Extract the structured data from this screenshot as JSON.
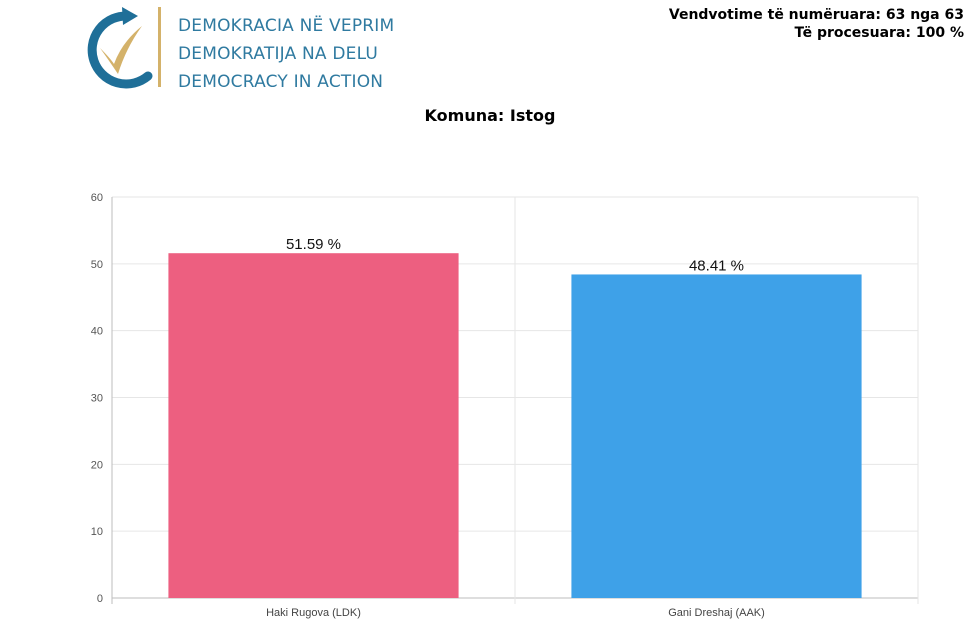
{
  "header": {
    "org_lines": [
      "DEMOKRACIA NË VEPRIM",
      "DEMOKRATIJA NA DELU",
      "DEMOCRACY IN ACTION"
    ],
    "counted_label": "Vendvotime të numëruara: 63 nga 63",
    "processed_label": "Të procesuara: 100 %"
  },
  "page": {
    "title": "Komuna: Istog"
  },
  "colors": {
    "org_text": "#2f7aa0",
    "logo_blue": "#1f6f98",
    "logo_gold": "#d4b26a"
  },
  "chart_data": {
    "type": "bar",
    "categories": [
      "Haki Rugova (LDK)",
      "Gani Dreshaj (AAK)"
    ],
    "values": [
      51.59,
      48.41
    ],
    "value_labels": [
      "51.59 %",
      "48.41 %"
    ],
    "colors": [
      "#ed5f80",
      "#3ea1e8"
    ],
    "ylim": [
      0,
      60
    ],
    "yticks": [
      0,
      10,
      20,
      30,
      40,
      50,
      60
    ],
    "grid": true,
    "xlabel": "",
    "ylabel": ""
  }
}
